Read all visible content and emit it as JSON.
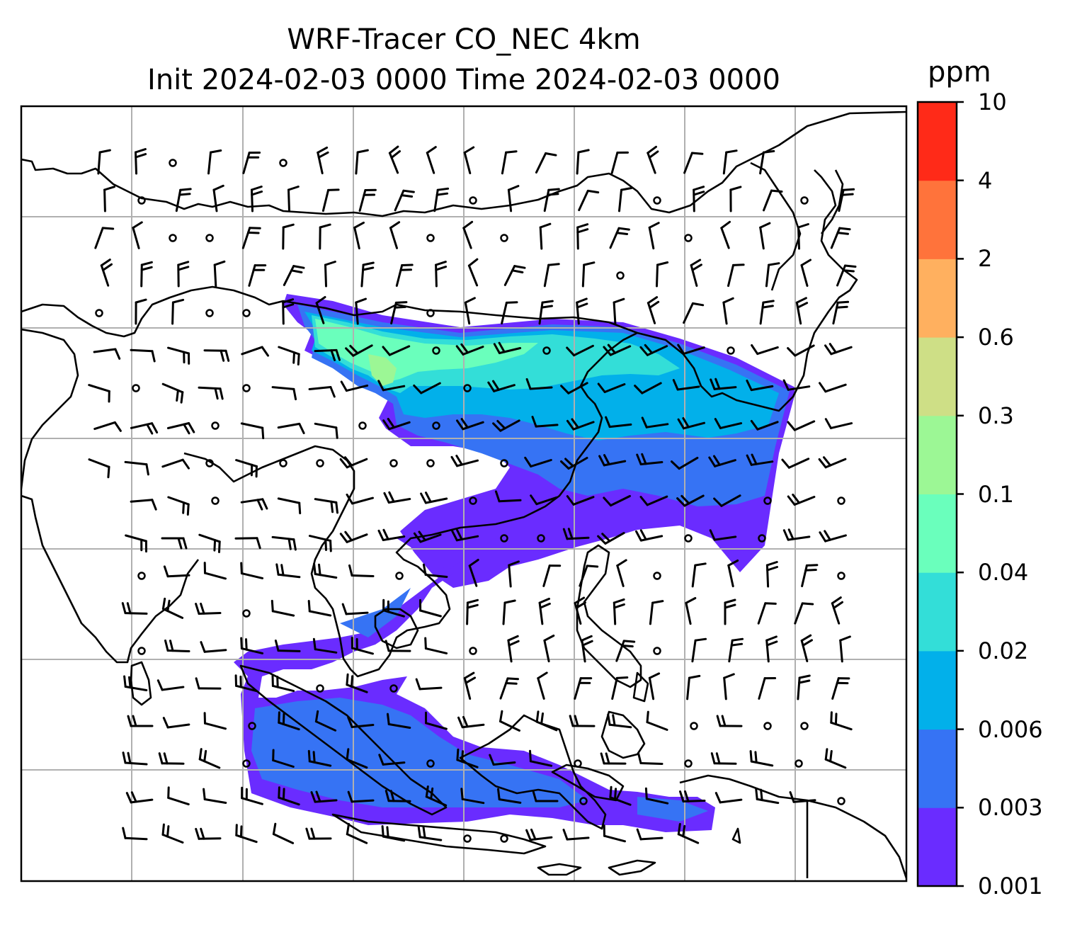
{
  "title": {
    "line1": "WRF-Tracer CO_NEC 4km",
    "line2": "Init 2024-02-03 0000 Time 2024-02-03 0000"
  },
  "colorbar": {
    "unit": "ppm",
    "levels": [
      "0.001",
      "0.003",
      "0.006",
      "0.02",
      "0.04",
      "0.1",
      "0.3",
      "0.6",
      "2",
      "4",
      "10"
    ],
    "colors": [
      "#6a2cff",
      "#3673f4",
      "#02b0ea",
      "#33ded8",
      "#6affbc",
      "#9cf795",
      "#cedf86",
      "#ffb05f",
      "#ff733b",
      "#ff2a18"
    ]
  },
  "map": {
    "field": "CO_NEC tracer concentration",
    "gridlines": true,
    "wind_barbs": true
  }
}
